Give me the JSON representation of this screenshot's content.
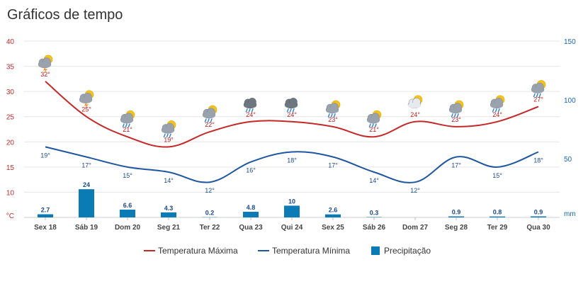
{
  "title": "Gráficos de tempo",
  "colors": {
    "max": "#c62828",
    "min": "#1e56a0",
    "precip": "#0b7bb5",
    "grid": "#e5e5e5"
  },
  "chart_data": {
    "type": "line",
    "categories": [
      "Sex 18",
      "Sáb 19",
      "Dom 20",
      "Seg 21",
      "Ter 22",
      "Qua 23",
      "Qui 24",
      "Sex 25",
      "Sáb 26",
      "Dom 27",
      "Seg 28",
      "Ter 29",
      "Qua 30"
    ],
    "series": [
      {
        "name": "Temperatura Máxima",
        "type": "line",
        "axis": "left",
        "values": [
          32,
          25,
          21,
          19,
          22,
          24,
          24,
          23,
          21,
          24,
          23,
          24,
          27
        ],
        "labels": [
          "32°",
          "25°",
          "21°",
          "19°",
          "22°",
          "24°",
          "24°",
          "23°",
          "21°",
          "24°",
          "23°",
          "24°",
          "27°"
        ]
      },
      {
        "name": "Temperatura Mínima",
        "type": "line",
        "axis": "left",
        "values": [
          19,
          17,
          15,
          14,
          12,
          16,
          18,
          17,
          14,
          12,
          17,
          15,
          18
        ],
        "labels": [
          "19°",
          "17°",
          "15°",
          "14°",
          "12°",
          "16°",
          "18°",
          "17°",
          "14°",
          "12°",
          "17°",
          "15°",
          "18°"
        ]
      },
      {
        "name": "Precipitação",
        "type": "bar",
        "axis": "right",
        "values": [
          2.7,
          24,
          6.6,
          4.3,
          0.2,
          4.8,
          10,
          2.6,
          0.3,
          0,
          0.9,
          0.8,
          0.9
        ],
        "labels": [
          "2.7",
          "24",
          "6.6",
          "4.3",
          "0.2",
          "4.8",
          "10",
          "2.6",
          "0.3",
          "",
          "0.9",
          "0.8",
          "0.9"
        ]
      }
    ],
    "y_left": {
      "unit": "°C",
      "min": 5,
      "max": 40,
      "ticks": [
        "40",
        "35",
        "30",
        "25",
        "20",
        "15",
        "10"
      ]
    },
    "y_right": {
      "unit": "mm",
      "min": 0,
      "max": 150,
      "ticks": [
        "150",
        "100",
        "50"
      ]
    },
    "grid": true,
    "legend": "bottom-center",
    "weather_icons": [
      "sun-cloud-storm-icon",
      "sun-cloud-storm-icon",
      "sun-cloud-rain-icon",
      "sun-cloud-rain-icon",
      "sun-cloud-rain-icon",
      "cloud-rain-icon",
      "cloud-rain-icon",
      "sun-cloud-rain-icon",
      "sun-cloud-rain-icon",
      "sun-cloud-icon",
      "sun-cloud-rain-icon",
      "sun-cloud-rain-icon",
      "sun-cloud-rain-icon"
    ]
  }
}
